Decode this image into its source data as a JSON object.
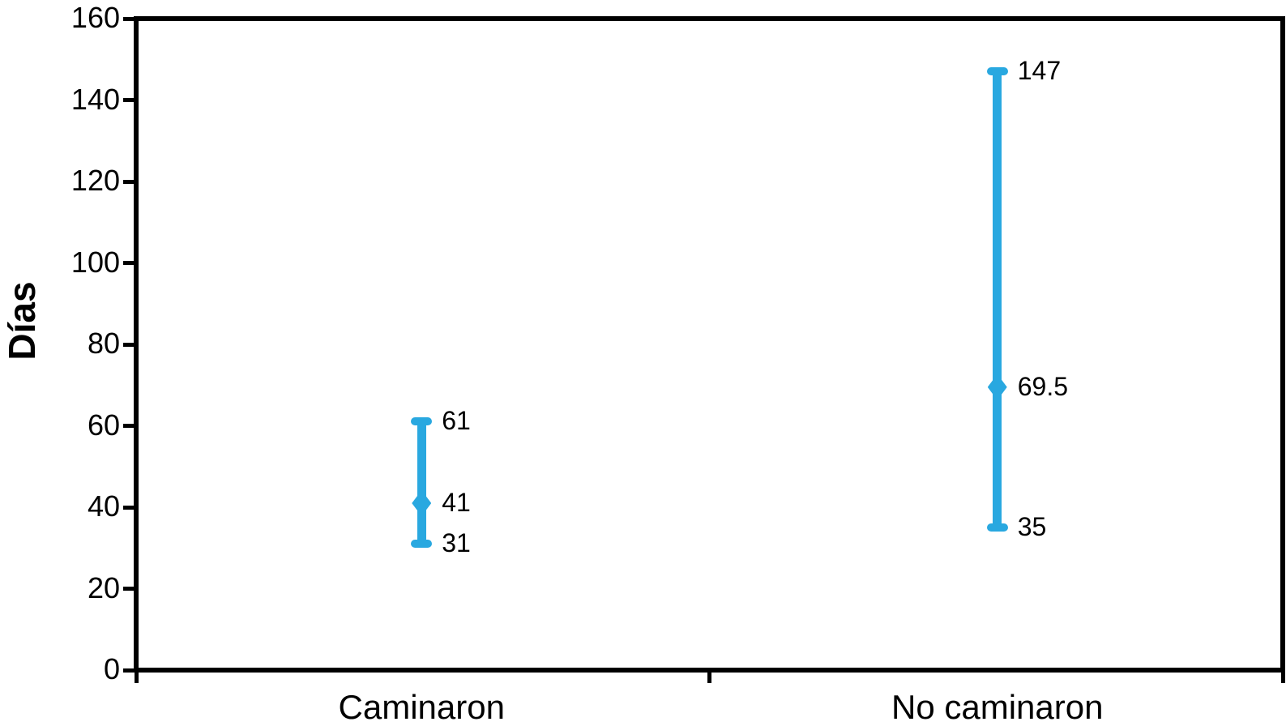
{
  "page": {
    "background": "#FFFFFF"
  },
  "chart_data": {
    "type": "error-range",
    "title": "",
    "ylabel": "Días",
    "xlabel": "",
    "ylim": [
      0,
      160
    ],
    "yticks": [
      0,
      20,
      40,
      60,
      80,
      100,
      120,
      140,
      160
    ],
    "ytick_labels": [
      "0",
      "20",
      "40",
      "60",
      "80",
      "100",
      "120",
      "140",
      "160"
    ],
    "categories": [
      "Caminaron",
      "No caminaron"
    ],
    "series": [
      {
        "category": "Caminaron",
        "min": 31,
        "mid": 41,
        "max": 61,
        "labels": {
          "min": "31",
          "mid": "41",
          "max": "61"
        }
      },
      {
        "category": "No caminaron",
        "min": 35,
        "mid": 69.5,
        "max": 147,
        "labels": {
          "min": "35",
          "mid": "69.5",
          "max": "147"
        }
      }
    ],
    "marker_mid": "diamond",
    "marker_end": "rounded-cap",
    "grid": false,
    "legend": null,
    "colors": {
      "bar": "#29A8E0",
      "axis": "#000000",
      "text": "#000000"
    }
  }
}
